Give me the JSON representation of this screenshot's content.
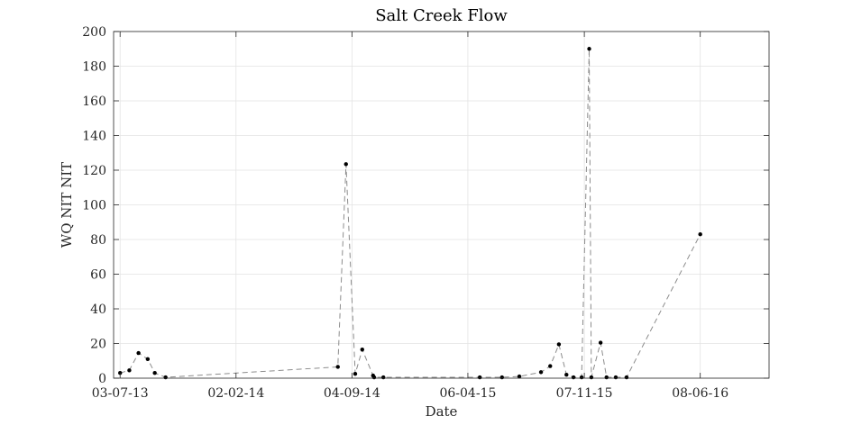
{
  "chart_data": {
    "type": "line",
    "title": "Salt Creek Flow",
    "xlabel": "Date",
    "ylabel": "WQ NIT NIT",
    "x_axis_type": "date",
    "xlim": [
      "2013-06-21",
      "2016-10-13"
    ],
    "ylim": [
      0,
      200
    ],
    "y_ticks": [
      0,
      20,
      40,
      60,
      80,
      100,
      120,
      140,
      160,
      180,
      200
    ],
    "x_ticks": [
      {
        "date": "2013-07-03",
        "label": "03-07-13"
      },
      {
        "date": "2014-02-02",
        "label": "02-02-14"
      },
      {
        "date": "2014-09-04",
        "label": "04-09-14"
      },
      {
        "date": "2015-04-06",
        "label": "06-04-15"
      },
      {
        "date": "2015-11-07",
        "label": "07-11-15"
      },
      {
        "date": "2016-06-08",
        "label": "08-06-16"
      }
    ],
    "grid": true,
    "line_style": "dashed",
    "line_color": "#8c8c8c",
    "marker_color": "#000000",
    "series": [
      {
        "points": [
          {
            "x": "2013-07-03",
            "y": 3
          },
          {
            "x": "2013-07-20",
            "y": 4.5
          },
          {
            "x": "2013-08-06",
            "y": 14.5
          },
          {
            "x": "2013-08-23",
            "y": 11
          },
          {
            "x": "2013-09-05",
            "y": 3
          },
          {
            "x": "2013-09-25",
            "y": 0.5
          },
          {
            "x": "2014-08-09",
            "y": 6.5
          },
          {
            "x": "2014-08-24",
            "y": 123.5
          },
          {
            "x": "2014-09-10",
            "y": 2.5
          },
          {
            "x": "2014-09-23",
            "y": 16.5
          },
          {
            "x": "2014-10-13",
            "y": 1.5
          },
          {
            "x": "2014-10-15",
            "y": 0.5
          },
          {
            "x": "2014-11-01",
            "y": 0.5
          },
          {
            "x": "2015-04-28",
            "y": 0.5
          },
          {
            "x": "2015-06-08",
            "y": 0.5
          },
          {
            "x": "2015-07-10",
            "y": 1
          },
          {
            "x": "2015-08-19",
            "y": 3.5
          },
          {
            "x": "2015-09-05",
            "y": 7
          },
          {
            "x": "2015-09-21",
            "y": 19.5
          },
          {
            "x": "2015-10-05",
            "y": 2
          },
          {
            "x": "2015-10-18",
            "y": 0.5
          },
          {
            "x": "2015-11-02",
            "y": 0.5
          },
          {
            "x": "2015-11-16",
            "y": 190
          },
          {
            "x": "2015-11-20",
            "y": 0.5
          },
          {
            "x": "2015-12-07",
            "y": 20.5
          },
          {
            "x": "2015-12-18",
            "y": 0.5
          },
          {
            "x": "2016-01-04",
            "y": 0.5
          },
          {
            "x": "2016-01-24",
            "y": 0.5
          },
          {
            "x": "2016-06-08",
            "y": 83
          }
        ]
      }
    ]
  }
}
